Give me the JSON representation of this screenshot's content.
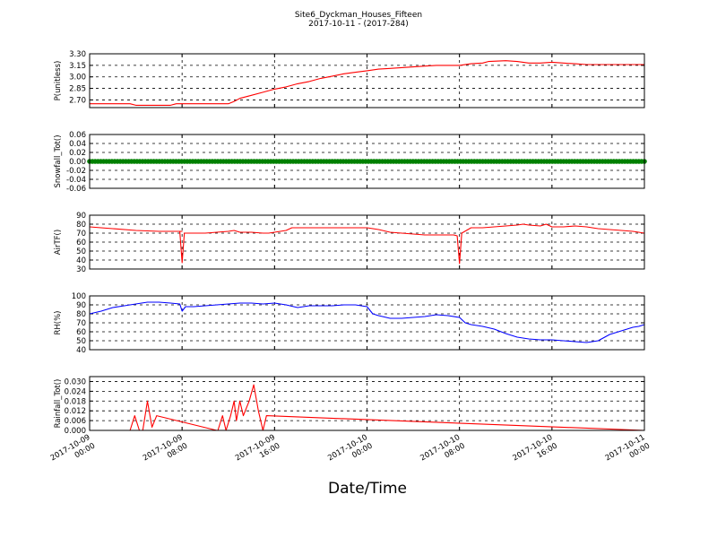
{
  "chart_data": {
    "title": "Site6_Dyckman_Houses_Fifteen",
    "subtitle": "2017-10-11 - (2017-284)",
    "xlabel": "Date/Time",
    "x_ticks": [
      "2017-10-09\n00:00",
      "2017-10-09\n08:00",
      "2017-10-09\n16:00",
      "2017-10-10\n00:00",
      "2017-10-10\n08:00",
      "2017-10-10\n16:00",
      "2017-10-11\n00:00"
    ],
    "x_range_hours": [
      0,
      48
    ],
    "grid": true,
    "panels": [
      {
        "type": "line",
        "ylabel": "P(unitless)",
        "ylim": [
          2.6,
          3.3
        ],
        "yticks": [
          "2.70",
          "2.85",
          "3.00",
          "3.15",
          "3.30"
        ],
        "ytick_values": [
          2.7,
          2.85,
          3.0,
          3.15,
          3.3
        ],
        "color": "#ff0000",
        "series": [
          {
            "x": [
              0,
              3.5,
              4,
              7,
              7.5,
              12,
              12.5,
              13,
              14,
              15,
              16,
              17,
              18,
              19,
              20,
              21,
              22,
              23,
              24,
              25,
              26,
              27,
              28,
              29,
              30,
              31,
              32,
              33,
              34,
              34.5,
              36,
              37,
              38,
              39,
              40,
              41,
              42,
              43,
              44,
              45,
              46,
              48
            ],
            "y": [
              2.65,
              2.65,
              2.63,
              2.63,
              2.65,
              2.65,
              2.68,
              2.72,
              2.76,
              2.8,
              2.84,
              2.87,
              2.91,
              2.94,
              2.98,
              3.01,
              3.04,
              3.06,
              3.08,
              3.1,
              3.11,
              3.12,
              3.13,
              3.14,
              3.15,
              3.15,
              3.15,
              3.17,
              3.18,
              3.2,
              3.21,
              3.2,
              3.18,
              3.18,
              3.19,
              3.18,
              3.17,
              3.16,
              3.16,
              3.16,
              3.16,
              3.16
            ]
          }
        ]
      },
      {
        "type": "scatter",
        "ylabel": "Snowfall_Tot()",
        "ylim": [
          -0.06,
          0.06
        ],
        "yticks": [
          "0.06",
          "0.04",
          "0.02",
          "0.00",
          "-0.02",
          "-0.04",
          "-0.06"
        ],
        "ytick_values": [
          0.06,
          0.04,
          0.02,
          0.0,
          -0.02,
          -0.04,
          -0.06
        ],
        "color": "#008000",
        "constant_value": 0.0,
        "point_count": 200
      },
      {
        "type": "line",
        "ylabel": "AirTF()",
        "ylim": [
          30,
          90
        ],
        "yticks": [
          "90",
          "80",
          "70",
          "60",
          "50",
          "40",
          "30"
        ],
        "ytick_values": [
          90,
          80,
          70,
          60,
          50,
          40,
          30
        ],
        "color": "#ff0000",
        "series": [
          {
            "x": [
              0,
              2,
              4,
              6,
              7,
              8,
              7.8,
              8.0,
              8.2,
              9,
              10,
              11,
              12,
              12.5,
              13,
              14,
              15,
              15.5,
              16,
              17,
              17.5,
              18,
              19,
              20,
              22,
              24,
              25,
              26,
              27,
              28,
              29,
              30,
              31.5,
              31.8,
              32.0,
              32.2,
              33,
              34,
              35,
              36,
              37,
              37.5,
              38,
              39,
              39.5,
              40,
              41,
              42,
              43,
              44,
              45,
              46,
              47,
              48
            ],
            "y": [
              77,
              75,
              73,
              72,
              72,
              72,
              72,
              37,
              70,
              70,
              70,
              71,
              72,
              73,
              71,
              71,
              70,
              70,
              71,
              73,
              76,
              76,
              76,
              76,
              76,
              76,
              74,
              71,
              70,
              69,
              68,
              68,
              68,
              67,
              36,
              70,
              76,
              76,
              77,
              78,
              79,
              80,
              79,
              78,
              80,
              77,
              77,
              78,
              77,
              75,
              74,
              73,
              72,
              70
            ]
          }
        ]
      },
      {
        "type": "line",
        "ylabel": "RH(%)",
        "ylim": [
          40,
          100
        ],
        "yticks": [
          "100",
          "90",
          "80",
          "70",
          "60",
          "50",
          "40"
        ],
        "ytick_values": [
          100,
          90,
          80,
          70,
          60,
          50,
          40
        ],
        "color": "#0000ff",
        "series": [
          {
            "x": [
              0,
              1,
              2,
              3,
              4,
              5,
              6,
              7,
              7.8,
              8,
              8.3,
              9,
              10,
              11,
              12,
              13,
              14,
              15,
              16,
              17,
              18,
              19,
              20,
              21,
              22,
              23,
              24,
              24.5,
              25,
              26,
              27,
              28,
              29,
              30,
              31,
              32,
              32.5,
              33,
              34,
              35,
              36,
              37,
              38,
              39,
              40,
              41,
              42,
              43,
              44,
              45,
              46,
              46.5,
              47,
              47.5,
              48
            ],
            "y": [
              80,
              83,
              87,
              89,
              91,
              93,
              93,
              92,
              91,
              83,
              88,
              88,
              89,
              90,
              91,
              92,
              92,
              91,
              92,
              90,
              87,
              89,
              89,
              89,
              90,
              90,
              88,
              80,
              78,
              75,
              75,
              76,
              77,
              79,
              78,
              76,
              70,
              68,
              66,
              63,
              58,
              54,
              52,
              51,
              51,
              50,
              49,
              48,
              50,
              57,
              61,
              63,
              65,
              66,
              68
            ]
          }
        ]
      },
      {
        "type": "line",
        "ylabel": "Rainfall_Tot()",
        "ylim": [
          0.0,
          0.033
        ],
        "yticks": [
          "0.030",
          "0.024",
          "0.018",
          "0.012",
          "0.006",
          "0.000"
        ],
        "ytick_values": [
          0.03,
          0.024,
          0.018,
          0.012,
          0.006,
          0.0
        ],
        "color": "#ff0000",
        "series": [
          {
            "x": [
              0,
              3.5,
              3.9,
              4.3,
              4.6,
              5.0,
              5.4,
              5.8,
              11,
              11.1,
              11.5,
              11.8,
              12.2,
              12.5,
              12.7,
              13.0,
              13.3,
              13.8,
              14.2,
              14.6,
              15.0,
              15.3,
              48
            ],
            "y": [
              0,
              0,
              0.009,
              0,
              0,
              0.018,
              0.002,
              0.009,
              0,
              0,
              0.009,
              0,
              0.009,
              0.018,
              0.006,
              0.018,
              0.009,
              0.018,
              0.028,
              0.012,
              0,
              0.009,
              0
            ]
          }
        ]
      }
    ]
  }
}
